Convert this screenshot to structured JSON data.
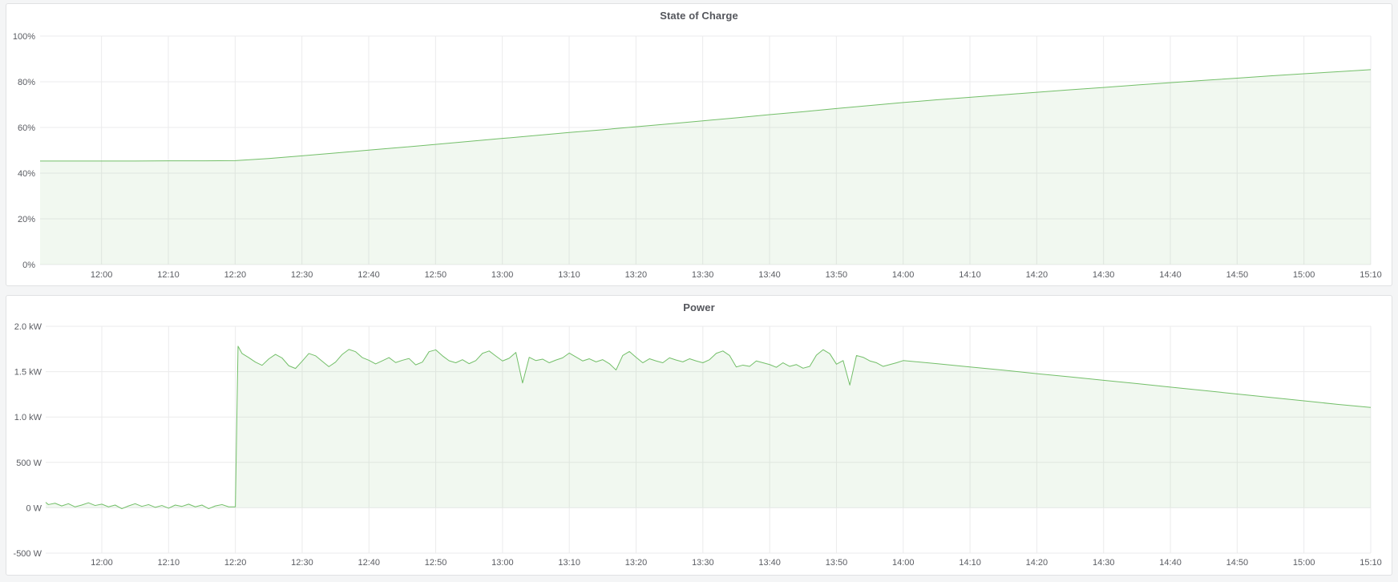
{
  "chart_data": [
    {
      "id": "soc",
      "type": "area",
      "title": "State of Charge",
      "line_color": "#73bf69",
      "fill_color": "#73bf69",
      "fill_opacity": 0.1,
      "x_domain": [
        -9.2,
        190
      ],
      "y_domain": [
        0,
        100
      ],
      "baseline": 0,
      "x_ticks": [
        {
          "t": 0,
          "label": "12:00"
        },
        {
          "t": 10,
          "label": "12:10"
        },
        {
          "t": 20,
          "label": "12:20"
        },
        {
          "t": 30,
          "label": "12:30"
        },
        {
          "t": 40,
          "label": "12:40"
        },
        {
          "t": 50,
          "label": "12:50"
        },
        {
          "t": 60,
          "label": "13:00"
        },
        {
          "t": 70,
          "label": "13:10"
        },
        {
          "t": 80,
          "label": "13:20"
        },
        {
          "t": 90,
          "label": "13:30"
        },
        {
          "t": 100,
          "label": "13:40"
        },
        {
          "t": 110,
          "label": "13:50"
        },
        {
          "t": 120,
          "label": "14:00"
        },
        {
          "t": 130,
          "label": "14:10"
        },
        {
          "t": 140,
          "label": "14:20"
        },
        {
          "t": 150,
          "label": "14:30"
        },
        {
          "t": 160,
          "label": "14:40"
        },
        {
          "t": 170,
          "label": "14:50"
        },
        {
          "t": 180,
          "label": "15:00"
        },
        {
          "t": 190,
          "label": "15:10"
        }
      ],
      "y_ticks": [
        {
          "v": 0,
          "label": "0%"
        },
        {
          "v": 20,
          "label": "20%"
        },
        {
          "v": 40,
          "label": "40%"
        },
        {
          "v": 60,
          "label": "60%"
        },
        {
          "v": 80,
          "label": "80%"
        },
        {
          "v": 100,
          "label": "100%"
        }
      ],
      "points": [
        [
          -9.2,
          45.3
        ],
        [
          0,
          45.3
        ],
        [
          5,
          45.3
        ],
        [
          10,
          45.4
        ],
        [
          15,
          45.4
        ],
        [
          20,
          45.5
        ],
        [
          25,
          46.4
        ],
        [
          30,
          47.6
        ],
        [
          35,
          48.8
        ],
        [
          40,
          50.1
        ],
        [
          45,
          51.3
        ],
        [
          50,
          52.6
        ],
        [
          55,
          53.9
        ],
        [
          60,
          55.2
        ],
        [
          65,
          56.5
        ],
        [
          70,
          57.8
        ],
        [
          75,
          59.0
        ],
        [
          80,
          60.3
        ],
        [
          85,
          61.6
        ],
        [
          90,
          62.9
        ],
        [
          95,
          64.2
        ],
        [
          100,
          65.6
        ],
        [
          105,
          66.9
        ],
        [
          110,
          68.3
        ],
        [
          115,
          69.6
        ],
        [
          120,
          70.9
        ],
        [
          125,
          72.1
        ],
        [
          130,
          73.2
        ],
        [
          135,
          74.3
        ],
        [
          140,
          75.4
        ],
        [
          145,
          76.5
        ],
        [
          150,
          77.5
        ],
        [
          155,
          78.6
        ],
        [
          160,
          79.6
        ],
        [
          165,
          80.6
        ],
        [
          170,
          81.6
        ],
        [
          175,
          82.6
        ],
        [
          180,
          83.5
        ],
        [
          185,
          84.4
        ],
        [
          190,
          85.3
        ]
      ]
    },
    {
      "id": "power",
      "type": "area",
      "title": "Power",
      "line_color": "#73bf69",
      "fill_color": "#73bf69",
      "fill_opacity": 0.1,
      "x_domain": [
        -8.4,
        190
      ],
      "y_domain": [
        -500,
        2000
      ],
      "baseline": 0,
      "x_ticks": [
        {
          "t": 0,
          "label": "12:00"
        },
        {
          "t": 10,
          "label": "12:10"
        },
        {
          "t": 20,
          "label": "12:20"
        },
        {
          "t": 30,
          "label": "12:30"
        },
        {
          "t": 40,
          "label": "12:40"
        },
        {
          "t": 50,
          "label": "12:50"
        },
        {
          "t": 60,
          "label": "13:00"
        },
        {
          "t": 70,
          "label": "13:10"
        },
        {
          "t": 80,
          "label": "13:20"
        },
        {
          "t": 90,
          "label": "13:30"
        },
        {
          "t": 100,
          "label": "13:40"
        },
        {
          "t": 110,
          "label": "13:50"
        },
        {
          "t": 120,
          "label": "14:00"
        },
        {
          "t": 130,
          "label": "14:10"
        },
        {
          "t": 140,
          "label": "14:20"
        },
        {
          "t": 150,
          "label": "14:30"
        },
        {
          "t": 160,
          "label": "14:40"
        },
        {
          "t": 170,
          "label": "14:50"
        },
        {
          "t": 180,
          "label": "15:00"
        },
        {
          "t": 190,
          "label": "15:10"
        }
      ],
      "y_ticks": [
        {
          "v": -500,
          "label": "-500 W"
        },
        {
          "v": 0,
          "label": "0 W"
        },
        {
          "v": 500,
          "label": "500 W"
        },
        {
          "v": 1000,
          "label": "1.0 kW"
        },
        {
          "v": 1500,
          "label": "1.5 kW"
        },
        {
          "v": 2000,
          "label": "2.0 kW"
        }
      ],
      "points": [
        [
          -8.4,
          60
        ],
        [
          -8,
          35
        ],
        [
          -7,
          50
        ],
        [
          -6,
          20
        ],
        [
          -5,
          45
        ],
        [
          -4,
          10
        ],
        [
          -3,
          30
        ],
        [
          -2,
          55
        ],
        [
          -1,
          25
        ],
        [
          0,
          40
        ],
        [
          1,
          10
        ],
        [
          2,
          30
        ],
        [
          3,
          -10
        ],
        [
          4,
          20
        ],
        [
          5,
          45
        ],
        [
          6,
          15
        ],
        [
          7,
          35
        ],
        [
          8,
          5
        ],
        [
          9,
          25
        ],
        [
          10,
          -5
        ],
        [
          11,
          30
        ],
        [
          12,
          15
        ],
        [
          13,
          40
        ],
        [
          14,
          10
        ],
        [
          15,
          30
        ],
        [
          16,
          -10
        ],
        [
          17,
          20
        ],
        [
          18,
          35
        ],
        [
          19,
          10
        ],
        [
          20,
          10
        ],
        [
          20.4,
          1780
        ],
        [
          21,
          1700
        ],
        [
          22,
          1655
        ],
        [
          23,
          1605
        ],
        [
          24,
          1570
        ],
        [
          25,
          1640
        ],
        [
          26,
          1690
        ],
        [
          27,
          1650
        ],
        [
          28,
          1565
        ],
        [
          29,
          1535
        ],
        [
          30,
          1615
        ],
        [
          31,
          1700
        ],
        [
          32,
          1675
        ],
        [
          33,
          1615
        ],
        [
          34,
          1555
        ],
        [
          35,
          1605
        ],
        [
          36,
          1690
        ],
        [
          37,
          1745
        ],
        [
          38,
          1720
        ],
        [
          39,
          1655
        ],
        [
          40,
          1625
        ],
        [
          41,
          1585
        ],
        [
          42,
          1620
        ],
        [
          43,
          1655
        ],
        [
          44,
          1600
        ],
        [
          45,
          1625
        ],
        [
          46,
          1645
        ],
        [
          47,
          1575
        ],
        [
          48,
          1605
        ],
        [
          49,
          1720
        ],
        [
          50,
          1740
        ],
        [
          51,
          1675
        ],
        [
          52,
          1620
        ],
        [
          53,
          1598
        ],
        [
          54,
          1632
        ],
        [
          55,
          1588
        ],
        [
          56,
          1622
        ],
        [
          57,
          1702
        ],
        [
          58,
          1728
        ],
        [
          59,
          1672
        ],
        [
          60,
          1618
        ],
        [
          61,
          1648
        ],
        [
          62,
          1712
        ],
        [
          63,
          1375
        ],
        [
          64,
          1658
        ],
        [
          65,
          1622
        ],
        [
          66,
          1638
        ],
        [
          67,
          1598
        ],
        [
          68,
          1628
        ],
        [
          69,
          1652
        ],
        [
          70,
          1705
        ],
        [
          71,
          1662
        ],
        [
          72,
          1618
        ],
        [
          73,
          1642
        ],
        [
          74,
          1608
        ],
        [
          75,
          1632
        ],
        [
          76,
          1588
        ],
        [
          77,
          1518
        ],
        [
          78,
          1678
        ],
        [
          79,
          1722
        ],
        [
          80,
          1658
        ],
        [
          81,
          1598
        ],
        [
          82,
          1642
        ],
        [
          83,
          1618
        ],
        [
          84,
          1598
        ],
        [
          85,
          1652
        ],
        [
          86,
          1628
        ],
        [
          87,
          1608
        ],
        [
          88,
          1642
        ],
        [
          89,
          1618
        ],
        [
          90,
          1598
        ],
        [
          91,
          1632
        ],
        [
          92,
          1702
        ],
        [
          93,
          1728
        ],
        [
          94,
          1678
        ],
        [
          95,
          1552
        ],
        [
          96,
          1572
        ],
        [
          97,
          1558
        ],
        [
          98,
          1618
        ],
        [
          99,
          1598
        ],
        [
          100,
          1578
        ],
        [
          101,
          1548
        ],
        [
          102,
          1598
        ],
        [
          103,
          1558
        ],
        [
          104,
          1578
        ],
        [
          105,
          1538
        ],
        [
          106,
          1558
        ],
        [
          107,
          1682
        ],
        [
          108,
          1742
        ],
        [
          109,
          1698
        ],
        [
          110,
          1582
        ],
        [
          111,
          1622
        ],
        [
          112,
          1352
        ],
        [
          113,
          1678
        ],
        [
          114,
          1658
        ],
        [
          115,
          1618
        ],
        [
          116,
          1598
        ],
        [
          117,
          1558
        ],
        [
          118,
          1578
        ],
        [
          119,
          1598
        ],
        [
          120,
          1622
        ],
        [
          125,
          1588
        ],
        [
          130,
          1552
        ],
        [
          135,
          1516
        ],
        [
          140,
          1478
        ],
        [
          145,
          1442
        ],
        [
          150,
          1405
        ],
        [
          155,
          1368
        ],
        [
          160,
          1330
        ],
        [
          165,
          1292
        ],
        [
          170,
          1254
        ],
        [
          175,
          1216
        ],
        [
          180,
          1178
        ],
        [
          185,
          1140
        ],
        [
          190,
          1105
        ]
      ]
    }
  ]
}
